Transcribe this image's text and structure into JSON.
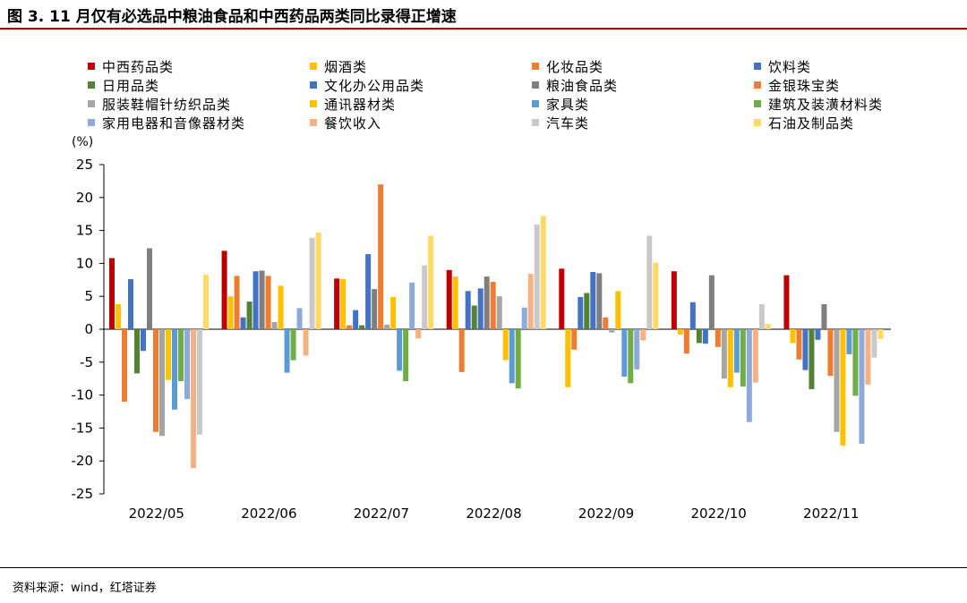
{
  "figure": {
    "title": "图 3. 11 月仅有必选品中粮油食品和中西药品两类同比录得正增速",
    "unit": "(%)",
    "source": "资料来源：wind，红塔证券"
  },
  "chart_data": {
    "type": "bar",
    "categories": [
      "2022/05",
      "2022/06",
      "2022/07",
      "2022/08",
      "2022/09",
      "2022/10",
      "2022/11"
    ],
    "ylim": [
      -25,
      25
    ],
    "yticks": [
      25,
      20,
      15,
      10,
      5,
      0,
      -5,
      -10,
      -15,
      -20,
      -25
    ],
    "grid": false,
    "legend_position": "top",
    "series": [
      {
        "name": "中西药品类",
        "color": "#c00000",
        "values": [
          10.8,
          11.9,
          7.7,
          9.0,
          9.2,
          8.8,
          8.2
        ]
      },
      {
        "name": "烟酒类",
        "color": "#ffc000",
        "values": [
          3.8,
          5.0,
          7.6,
          8.0,
          -8.8,
          -0.8,
          -2.1
        ]
      },
      {
        "name": "化妆品类",
        "color": "#ed7d31",
        "values": [
          -11.0,
          8.1,
          0.6,
          -6.5,
          -3.1,
          -3.7,
          -4.6
        ]
      },
      {
        "name": "饮料类",
        "color": "#4472c4",
        "values": [
          7.6,
          1.8,
          2.9,
          5.8,
          4.9,
          4.1,
          -6.2
        ]
      },
      {
        "name": "日用品类",
        "color": "#548235",
        "values": [
          -6.7,
          4.2,
          0.6,
          3.6,
          5.5,
          -2.1,
          -9.1
        ]
      },
      {
        "name": "文化办公用品类",
        "color": "#4472c4",
        "values": [
          -3.3,
          8.8,
          11.4,
          6.2,
          8.7,
          -2.2,
          -1.6
        ]
      },
      {
        "name": "粮油食品类",
        "color": "#7f7f7f",
        "values": [
          12.3,
          8.9,
          6.1,
          8.0,
          8.5,
          8.2,
          3.8
        ]
      },
      {
        "name": "金银珠宝类",
        "color": "#ed7d31",
        "values": [
          -15.6,
          8.1,
          22.0,
          7.2,
          1.8,
          -2.7,
          -7.1
        ]
      },
      {
        "name": "服装鞋帽针纺织品类",
        "color": "#a5a5a5",
        "values": [
          -16.2,
          1.1,
          0.7,
          5.0,
          -0.5,
          -7.5,
          -15.6
        ]
      },
      {
        "name": "通讯器材类",
        "color": "#ffc000",
        "values": [
          -7.7,
          6.6,
          4.9,
          -4.7,
          5.8,
          -8.8,
          -17.7
        ]
      },
      {
        "name": "家具类",
        "color": "#5b9bd5",
        "values": [
          -12.2,
          -6.6,
          -6.3,
          -8.2,
          -7.2,
          -6.6,
          -3.8
        ]
      },
      {
        "name": "建筑及装潢材料类",
        "color": "#70ad47",
        "values": [
          -7.9,
          -4.7,
          -7.9,
          -9.0,
          -8.2,
          -8.7,
          -10.1
        ]
      },
      {
        "name": "家用电器和音像器材类",
        "color": "#8eaadb",
        "values": [
          -10.6,
          3.2,
          7.1,
          3.3,
          -6.1,
          -14.1,
          -17.4
        ]
      },
      {
        "name": "餐饮收入",
        "color": "#f4b183",
        "values": [
          -21.1,
          -4.0,
          -1.4,
          8.4,
          -1.7,
          -8.1,
          -8.4
        ]
      },
      {
        "name": "汽车类",
        "color": "#c9c9c9",
        "values": [
          -16.0,
          13.9,
          9.7,
          15.9,
          14.2,
          3.8,
          -4.3
        ]
      },
      {
        "name": "石油及制品类",
        "color": "#ffd966",
        "values": [
          8.3,
          14.7,
          14.2,
          17.2,
          10.1,
          0.8,
          -1.5
        ]
      }
    ]
  }
}
